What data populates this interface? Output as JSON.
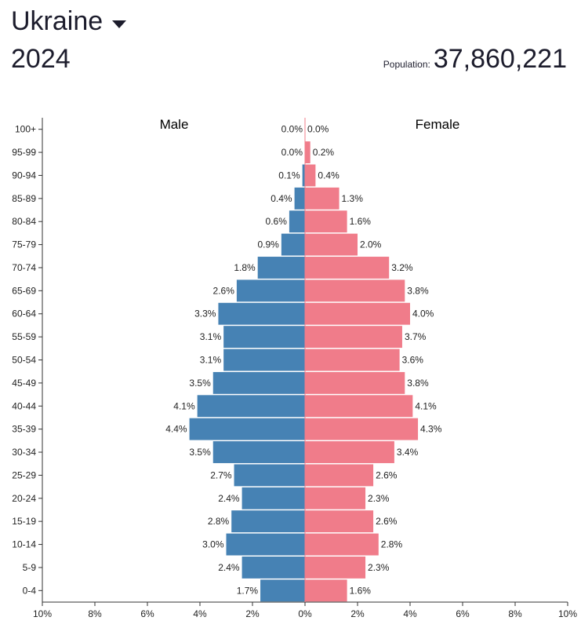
{
  "header": {
    "country": "Ukraine",
    "year": "2024",
    "population_label": "Population:",
    "population_value": "37,860,221"
  },
  "colors": {
    "male": "#4682b4",
    "female": "#f07c8a",
    "axis": "#333333"
  },
  "chart_data": {
    "type": "bar",
    "subtype": "population-pyramid",
    "categories": [
      "100+",
      "95-99",
      "90-94",
      "85-89",
      "80-84",
      "75-79",
      "70-74",
      "65-69",
      "60-64",
      "55-59",
      "50-54",
      "45-49",
      "40-44",
      "35-39",
      "30-34",
      "25-29",
      "20-24",
      "15-19",
      "10-14",
      "5-9",
      "0-4"
    ],
    "series": [
      {
        "name": "Male",
        "values": [
          0.0,
          0.0,
          0.1,
          0.4,
          0.6,
          0.9,
          1.8,
          2.6,
          3.3,
          3.1,
          3.1,
          3.5,
          4.1,
          4.4,
          3.5,
          2.7,
          2.4,
          2.8,
          3.0,
          2.4,
          1.7
        ],
        "labels": [
          "0.0%",
          "0.0%",
          "0.1%",
          "0.4%",
          "0.6%",
          "0.9%",
          "1.8%",
          "2.6%",
          "3.3%",
          "3.1%",
          "3.1%",
          "3.5%",
          "4.1%",
          "4.4%",
          "3.5%",
          "2.7%",
          "2.4%",
          "2.8%",
          "3.0%",
          "2.4%",
          "1.7%"
        ]
      },
      {
        "name": "Female",
        "values": [
          0.0,
          0.2,
          0.4,
          1.3,
          1.6,
          2.0,
          3.2,
          3.8,
          4.0,
          3.7,
          3.6,
          3.8,
          4.1,
          4.3,
          3.4,
          2.6,
          2.3,
          2.6,
          2.8,
          2.3,
          1.6
        ],
        "labels": [
          "0.0%",
          "0.2%",
          "0.4%",
          "1.3%",
          "1.6%",
          "2.0%",
          "3.2%",
          "3.8%",
          "4.0%",
          "3.7%",
          "3.6%",
          "3.8%",
          "4.1%",
          "4.3%",
          "3.4%",
          "2.6%",
          "2.3%",
          "2.6%",
          "2.8%",
          "2.3%",
          "1.6%"
        ]
      }
    ],
    "xlim": [
      -10,
      10
    ],
    "xticks": [
      -10,
      -8,
      -6,
      -4,
      -2,
      0,
      2,
      4,
      6,
      8,
      10
    ],
    "xtick_labels": [
      "10%",
      "8%",
      "6%",
      "4%",
      "2%",
      "0%",
      "2%",
      "4%",
      "6%",
      "8%",
      "10%"
    ],
    "title": "",
    "xlabel": "",
    "ylabel": ""
  }
}
